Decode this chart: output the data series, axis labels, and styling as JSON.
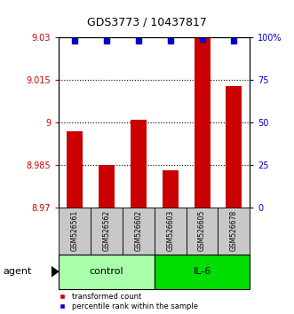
{
  "title": "GDS3773 / 10437817",
  "samples": [
    "GSM526561",
    "GSM526562",
    "GSM526602",
    "GSM526603",
    "GSM526605",
    "GSM526678"
  ],
  "red_values": [
    8.997,
    8.985,
    9.001,
    8.983,
    9.03,
    9.013
  ],
  "blue_values": [
    98,
    98,
    98,
    98,
    99,
    98
  ],
  "ylim_left": [
    8.97,
    9.03
  ],
  "ylim_right": [
    0,
    100
  ],
  "yticks_left": [
    8.97,
    8.985,
    9.0,
    9.015,
    9.03
  ],
  "yticks_right": [
    0,
    25,
    50,
    75,
    100
  ],
  "ytick_labels_left": [
    "8.97",
    "8.985",
    "9",
    "9.015",
    "9.03"
  ],
  "ytick_labels_right": [
    "0",
    "25",
    "50",
    "75",
    "100%"
  ],
  "groups": [
    {
      "label": "control",
      "indices": [
        0,
        1,
        2
      ],
      "color": "#aaffaa"
    },
    {
      "label": "IL-6",
      "indices": [
        3,
        4,
        5
      ],
      "color": "#00dd00"
    }
  ],
  "bar_color": "#CC0000",
  "dot_color": "#0000CC",
  "bar_width": 0.5,
  "agent_label": "agent",
  "legend_red": "transformed count",
  "legend_blue": "percentile rank within the sample",
  "sample_box_color": "#C8C8C8",
  "grid_linestyle": "dotted"
}
